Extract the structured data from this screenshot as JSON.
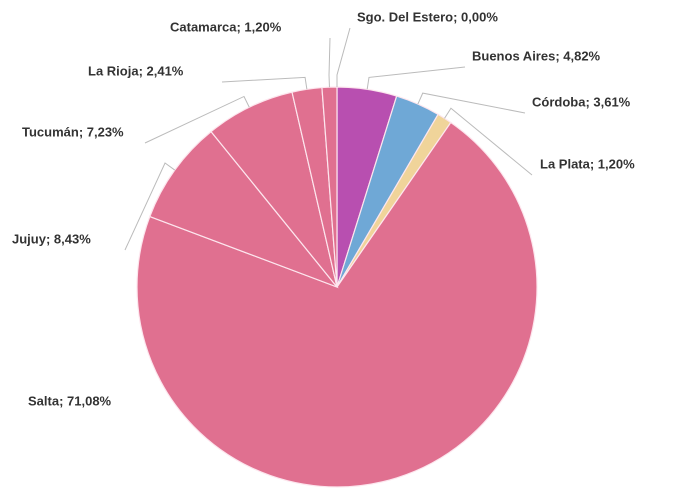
{
  "chart_data": {
    "type": "pie",
    "categories": [
      "Sgo. Del Estero",
      "Buenos Aires",
      "Córdoba",
      "La Plata",
      "Salta",
      "Jujuy",
      "Tucumán",
      "La Rioja",
      "Catamarca"
    ],
    "values": [
      0.0,
      4.82,
      3.61,
      1.2,
      71.08,
      8.43,
      7.23,
      2.41,
      1.2
    ],
    "value_labels": [
      "Sgo. Del Estero; 0,00%",
      "Buenos Aires; 4,82%",
      "Córdoba; 3,61%",
      "La Plata; 1,20%",
      "Salta; 71,08%",
      "Jujuy; 8,43%",
      "Tucumán; 7,23%",
      "La Rioja; 2,41%",
      "Catamarca; 1,20%"
    ],
    "colors": [
      "#b84fb0",
      "#b84fb0",
      "#6fa8d6",
      "#f0d49a",
      "#e07090",
      "#e07090",
      "#e07090",
      "#e07090",
      "#e07090"
    ]
  }
}
